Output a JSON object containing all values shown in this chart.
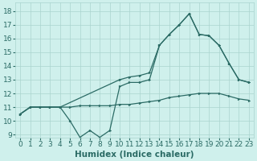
{
  "xlabel": "Humidex (Indice chaleur)",
  "bg_color": "#cff0ec",
  "grid_color": "#aad4ce",
  "line_color": "#2b6b65",
  "xlim": [
    -0.5,
    23.5
  ],
  "ylim": [
    8.8,
    18.6
  ],
  "xticks": [
    0,
    1,
    2,
    3,
    4,
    5,
    6,
    7,
    8,
    9,
    10,
    11,
    12,
    13,
    14,
    15,
    16,
    17,
    18,
    19,
    20,
    21,
    22,
    23
  ],
  "yticks": [
    9,
    10,
    11,
    12,
    13,
    14,
    15,
    16,
    17,
    18
  ],
  "line1_x": [
    0,
    1,
    2,
    3,
    4,
    5,
    6,
    7,
    8,
    9,
    10,
    11,
    12,
    13,
    14,
    15,
    16,
    17,
    18,
    19,
    20,
    21,
    22,
    23
  ],
  "line1_y": [
    10.5,
    11.0,
    11.0,
    11.0,
    11.0,
    11.0,
    11.1,
    11.1,
    11.1,
    11.1,
    11.2,
    11.2,
    11.3,
    11.4,
    11.5,
    11.7,
    11.8,
    11.9,
    12.0,
    12.0,
    12.0,
    11.8,
    11.6,
    11.5
  ],
  "line2_x": [
    0,
    1,
    2,
    3,
    4,
    5,
    6,
    7,
    8,
    9,
    10,
    11,
    12,
    13,
    14,
    15,
    16,
    17,
    18,
    19,
    20,
    21,
    22,
    23
  ],
  "line2_y": [
    10.5,
    11.0,
    11.0,
    11.0,
    11.0,
    10.0,
    8.8,
    9.3,
    8.8,
    9.3,
    12.5,
    12.8,
    12.8,
    13.0,
    15.5,
    16.3,
    17.0,
    17.8,
    16.3,
    16.2,
    15.5,
    14.2,
    13.0,
    12.8
  ],
  "line3_x": [
    0,
    1,
    2,
    3,
    4,
    10,
    11,
    12,
    13,
    14,
    15,
    16,
    17,
    18,
    19,
    20,
    21,
    22,
    23
  ],
  "line3_y": [
    10.5,
    11.0,
    11.0,
    11.0,
    11.0,
    13.0,
    13.2,
    13.3,
    13.5,
    15.5,
    16.3,
    17.0,
    17.8,
    16.3,
    16.2,
    15.5,
    14.2,
    13.0,
    12.8
  ],
  "xlabel_fontsize": 7.5,
  "tick_fontsize": 6.5,
  "marker_size": 2.0,
  "linewidth": 0.9
}
